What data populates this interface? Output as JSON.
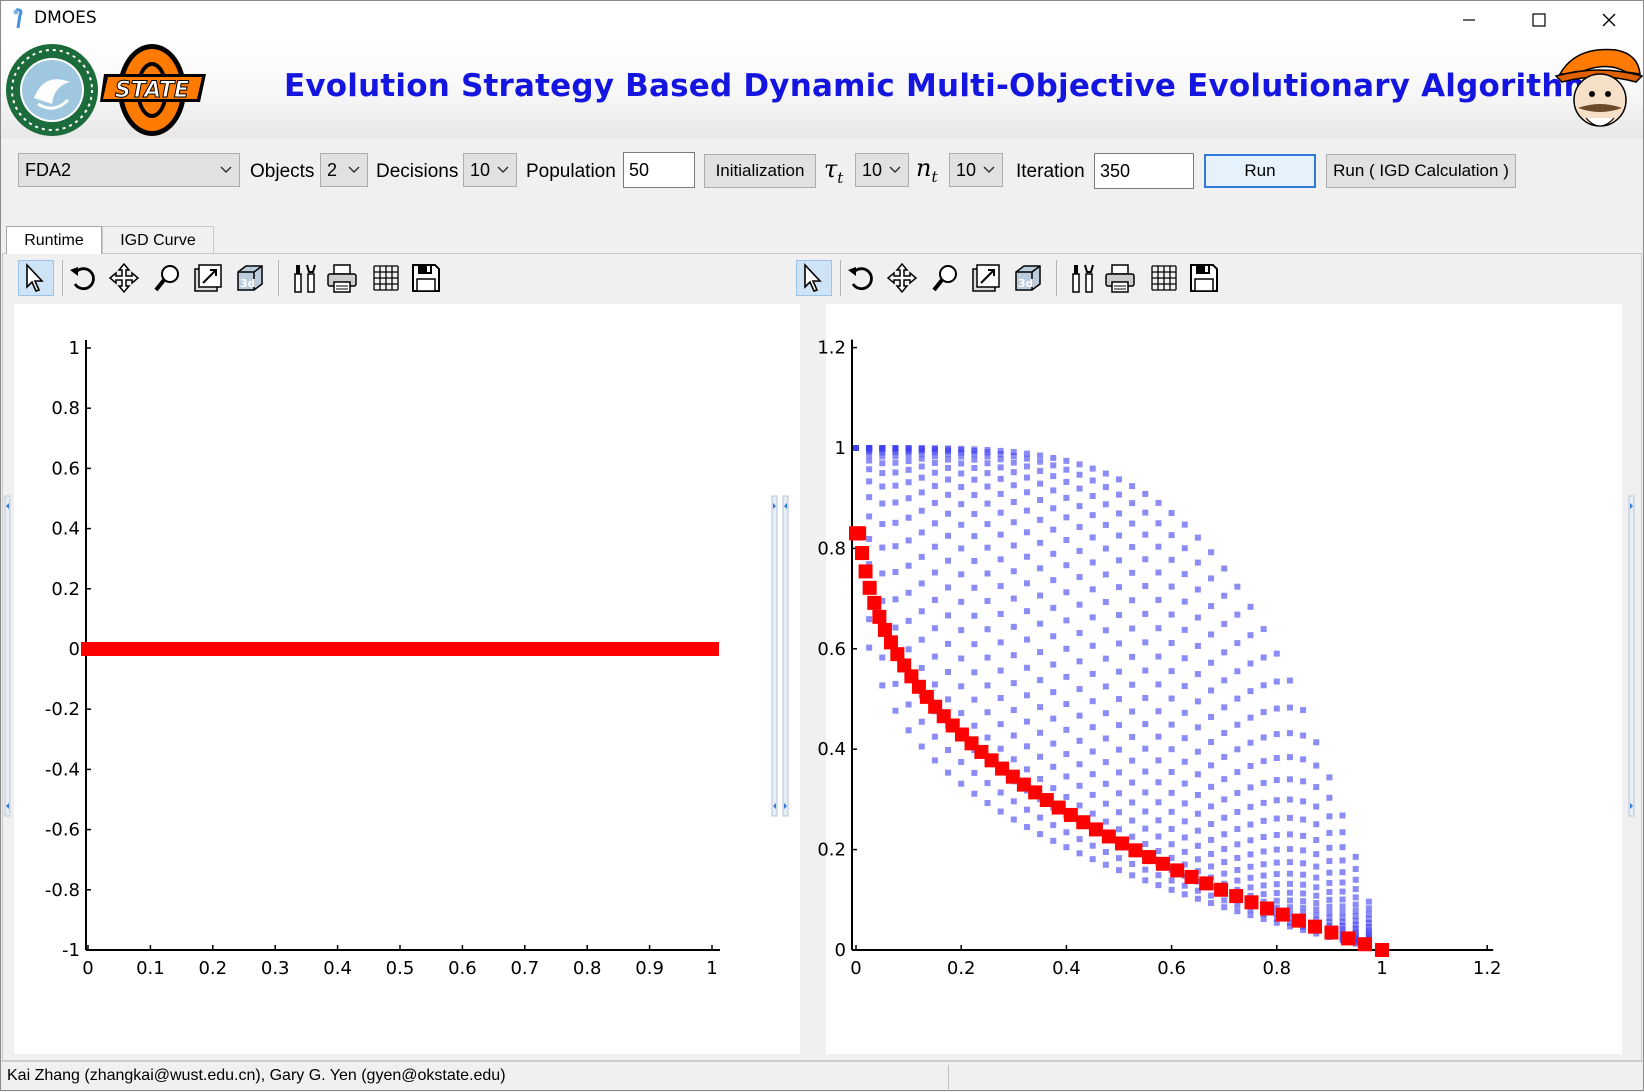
{
  "window": {
    "title": "DMOES"
  },
  "banner": {
    "title": "Evolution Strategy Based Dynamic Multi-Objective Evolutionary Algorithm"
  },
  "controls": {
    "problem": "FDA2",
    "objects_label": "Objects",
    "objects_value": "2",
    "decisions_label": "Decisions",
    "decisions_value": "10",
    "population_label": "Population",
    "population_value": "50",
    "init_button": "Initialization",
    "tau_symbol": "τ",
    "tau_sub": "t",
    "tau_value": "10",
    "n_symbol": "n",
    "n_sub": "t",
    "n_value": "10",
    "iteration_label": "Iteration",
    "iteration_value": "350",
    "run_button": "Run",
    "run_igd_button": "Run ( IGD Calculation )"
  },
  "tabs": [
    "Runtime",
    "IGD Curve"
  ],
  "toolbar_icons": [
    "pointer-icon",
    "rotate-icon",
    "pan-icon",
    "zoom-icon",
    "zoom-box-icon",
    "3d-view-icon",
    "properties-icon",
    "print-icon",
    "grid-icon",
    "save-icon"
  ],
  "status": {
    "text": "Kai Zhang (zhangkai@wust.edu.cn),  Gary G. Yen (gyen@okstate.edu)"
  },
  "colors": {
    "title_blue": "#1515e0",
    "red_marker": "#ff0000",
    "blue_marker": "#4040f0"
  },
  "chart_data": [
    {
      "type": "scatter",
      "xlim": [
        0,
        1
      ],
      "ylim": [
        -1,
        1
      ],
      "xticks": [
        "0",
        "0.1",
        "0.2",
        "0.3",
        "0.4",
        "0.5",
        "0.6",
        "0.7",
        "0.8",
        "0.9",
        "1"
      ],
      "yticks": [
        "1",
        "0.8",
        "0.6",
        "0.4",
        "0.2",
        "0",
        "-0.2",
        "-0.4",
        "-0.6",
        "-0.8",
        "-1"
      ],
      "series": [
        {
          "color": "#ff0000",
          "x_range": [
            0,
            1
          ],
          "y": 0,
          "points": 50
        }
      ]
    },
    {
      "type": "scatter",
      "xlim": [
        0,
        1.2
      ],
      "ylim": [
        0,
        1.2
      ],
      "xticks": [
        "0",
        "0.2",
        "0.4",
        "0.6",
        "0.8",
        "1",
        "1.2"
      ],
      "yticks": [
        "1.2",
        "1",
        "0.8",
        "0.6",
        "0.4",
        "0.2",
        "0"
      ],
      "series": [
        {
          "color": "#4040f0",
          "curve": "y = 1 - x^H, H from 0.25 to 4"
        },
        {
          "color": "#ff0000",
          "curve": "y = 1 - x^0.35",
          "points": 50
        }
      ]
    }
  ]
}
